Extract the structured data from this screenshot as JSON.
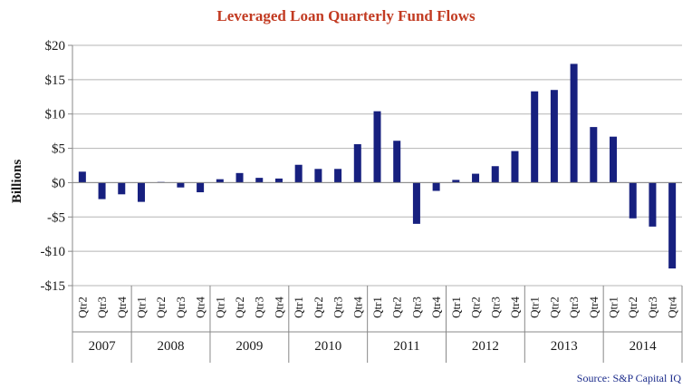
{
  "colors": {
    "title": "#c23b22",
    "bar": "#17207f",
    "grid": "#b5b5b5",
    "axis": "#888888",
    "source": "#1a2a8a"
  },
  "chart_data": {
    "type": "bar",
    "title": "Leveraged Loan Quarterly Fund Flows",
    "ylabel": "Billions",
    "xlabel": "",
    "ylim": [
      -15,
      20
    ],
    "y_ticks": [
      20,
      15,
      10,
      5,
      0,
      -5,
      -10,
      -15
    ],
    "y_tick_labels": [
      "$20",
      "$15",
      "$10",
      "$5",
      "$0",
      "-$5",
      "-$10",
      "-$15"
    ],
    "grid": true,
    "source": "Source: S&P Capital IQ",
    "categories": [
      "Qtr2",
      "Qtr3",
      "Qtr4",
      "Qtr1",
      "Qtr2",
      "Qtr3",
      "Qtr4",
      "Qtr1",
      "Qtr2",
      "Qtr3",
      "Qtr4",
      "Qtr1",
      "Qtr2",
      "Qtr3",
      "Qtr4",
      "Qtr1",
      "Qtr2",
      "Qtr3",
      "Qtr4",
      "Qtr1",
      "Qtr2",
      "Qtr3",
      "Qtr4",
      "Qtr1",
      "Qtr2",
      "Qtr3",
      "Qtr4",
      "Qtr1",
      "Qtr2",
      "Qtr3",
      "Qtr4"
    ],
    "groups": [
      {
        "label": "2007",
        "count": 3
      },
      {
        "label": "2008",
        "count": 4
      },
      {
        "label": "2009",
        "count": 4
      },
      {
        "label": "2010",
        "count": 4
      },
      {
        "label": "2011",
        "count": 4
      },
      {
        "label": "2012",
        "count": 4
      },
      {
        "label": "2013",
        "count": 4
      },
      {
        "label": "2014",
        "count": 4
      }
    ],
    "values": [
      1.6,
      -2.4,
      -1.7,
      -2.8,
      0.1,
      -0.7,
      -1.4,
      0.5,
      1.4,
      0.7,
      0.6,
      2.6,
      2.0,
      2.0,
      5.6,
      10.4,
      6.1,
      -6.0,
      -1.2,
      0.4,
      1.3,
      2.4,
      4.6,
      13.3,
      13.5,
      17.3,
      8.1,
      6.7,
      -5.2,
      -6.4,
      -12.5
    ]
  }
}
